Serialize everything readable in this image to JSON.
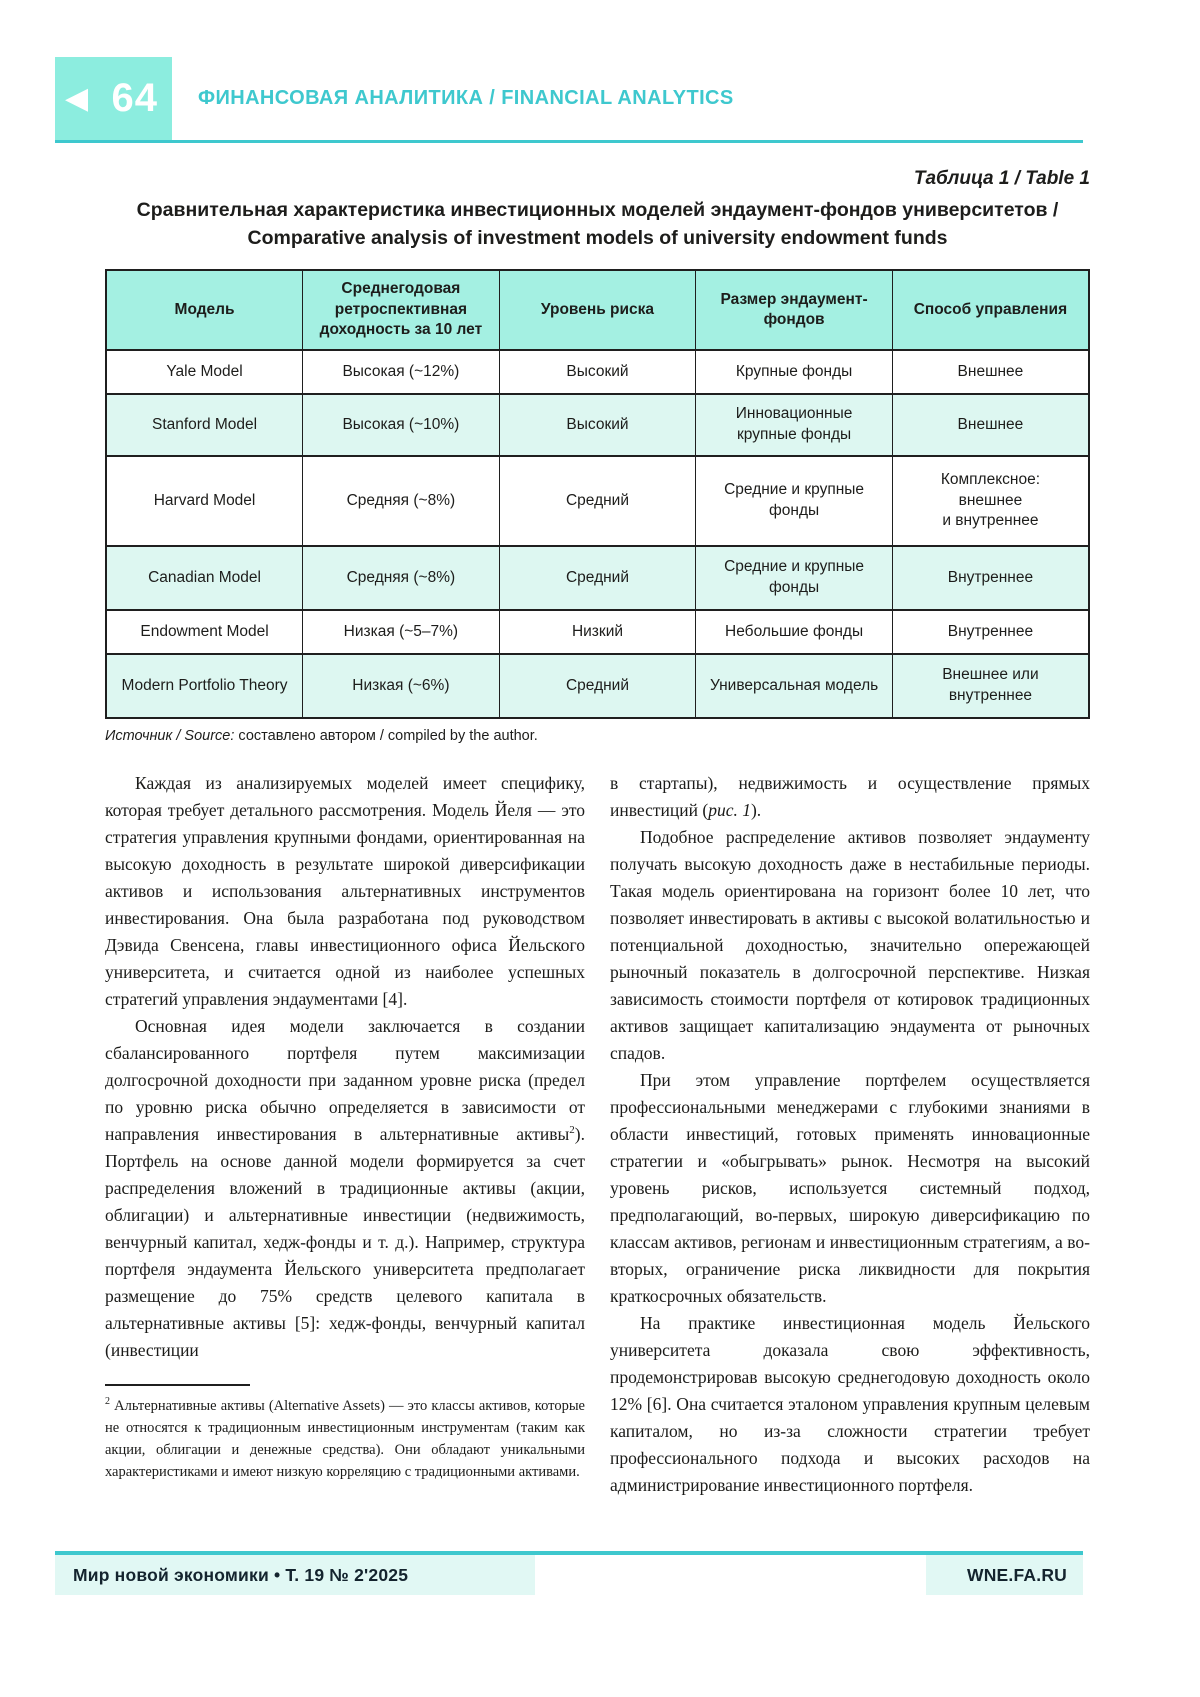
{
  "colors": {
    "accent_teal": "#3ec8ce",
    "mint_block": "#8ceddf",
    "table_header_bg": "#a4f0e2",
    "table_row_alt_bg": "#ddf7f1",
    "footer_band_bg": "#e1f8f4",
    "text_dark": "#1d1d1b"
  },
  "header": {
    "page_number": "64",
    "back_arrow_glyph": "◀",
    "journal_line": "ФИНАНСОВАЯ АНАЛИТИКА / FINANCIAL ANALYTICS"
  },
  "table_block": {
    "caption": "Таблица 1 / Table 1",
    "title": "Сравнительная характеристика инвестиционных моделей эндаумент-фондов университетов / Comparative analysis of investment models of university endowment funds",
    "columns": [
      "Модель",
      "Среднегодовая ретроспективная доходность за 10 лет",
      "Уровень риска",
      "Размер эндаумент-фондов",
      "Способ управления"
    ],
    "rows": [
      {
        "cells": [
          "Yale Model",
          "Высокая (~12%)",
          "Высокий",
          "Крупные фонды",
          "Внешнее"
        ]
      },
      {
        "cells": [
          "Stanford Model",
          "Высокая (~10%)",
          "Высокий",
          "Инновационные крупные фонды",
          "Внешнее"
        ]
      },
      {
        "cells": [
          "Harvard Model",
          "Средняя (~8%)",
          "Средний",
          "Средние и крупные фонды",
          "Комплексное:\nвнешнее\nи внутреннее"
        ]
      },
      {
        "cells": [
          "Canadian Model",
          "Средняя (~8%)",
          "Средний",
          "Средние и крупные фонды",
          "Внутреннее"
        ]
      },
      {
        "cells": [
          "Endowment Model",
          "Низкая (~5–7%)",
          "Низкий",
          "Небольшие фонды",
          "Внутреннее"
        ]
      },
      {
        "cells": [
          "Modern Portfolio Theory",
          "Низкая (~6%)",
          "Средний",
          "Универсальная модель",
          "Внешнее или внутреннее"
        ]
      }
    ],
    "source_label": "Источник / Source:",
    "source_text": " составлено автором / compiled by the author."
  },
  "article": {
    "left_column": {
      "p1": "Каждая из анализируемых моделей имеет специфику, которая требует детального рассмотрения. Модель Йеля — это стратегия управления крупными фондами, ориентированная на высокую доходность в результате широкой диверсификации активов и использования альтернативных инструментов инвестирования. Она была разработана под руководством Дэвида Свенсена, главы инвестиционного офиса Йельского университета, и считается одной из наиболее успешных стратегий управления эндаументами [4].",
      "p2a": "Основная идея модели заключается в создании сбалансированного портфеля путем максимизации долгосрочной доходности при заданном уровне риска (предел по уровню риска обычно определяется в зависимости от направления инвестирования в альтернативные активы",
      "p2_footnote_ref": "2",
      "p2b": "). Портфель на основе данной модели формируется за счет распределения вложений в традиционные активы (акции, облигации) и альтернативные инвестиции (недвижимость, венчурный капитал, хедж-фонды и т. д.). Например, структура портфеля эндаумента Йельского университета предполагает размещение до 75% средств целевого капитала в альтернативные активы [5]: хедж-фонды, венчурный капитал (инвестиции",
      "footnote_marker": "2",
      "footnote_text": " Альтернативные активы (Alternative Assets) — это классы активов, которые не относятся к традиционным инвестиционным инструментам (таким как акции, облигации и денежные средства). Они обладают уникальными характеристиками и имеют низкую корреляцию с традиционными активами."
    },
    "right_column": {
      "p1a": "в стартапы), недвижимость и осуществление прямых инвестиций (",
      "p1_italic": "рис. 1",
      "p1b": ").",
      "p2": "Подобное распределение активов позволяет эндаументу получать высокую доходность даже в нестабильные периоды. Такая модель ориентирована на горизонт более 10 лет, что позволяет инвестировать в активы с высокой волатильностью и потенциальной доходностью, значительно опережающей рыночный показатель в долгосрочной перспективе. Низкая зависимость стоимости портфеля от котировок традиционных активов защищает капитализацию эндаумента от рыночных спадов.",
      "p3": "При этом управление портфелем осуществляется профессиональными менеджерами с глубокими знаниями в области инвестиций, готовых применять инновационные стратегии и «обыгрывать» рынок. Несмотря на высокий уровень рисков, используется системный подход, предполагающий, во-первых, широкую диверсификацию по классам активов, регионам и инвестиционным стратегиям, а во-вторых, ограничение риска ликвидности для покрытия краткосрочных обязательств.",
      "p4": "На практике инвестиционная модель Йельского университета доказала свою эффективность, продемонстрировав высокую среднегодовую доходность около 12% [6]. Она считается эталоном управления крупным целевым капиталом, но из-за сложности стратегии требует профессионального подхода и высоких расходов на администрирование инвестиционного портфеля."
    }
  },
  "footer": {
    "left_text": "Мир новой экономики • Т. 19 № 2'2025",
    "right_text": "WNE.FA.RU"
  }
}
